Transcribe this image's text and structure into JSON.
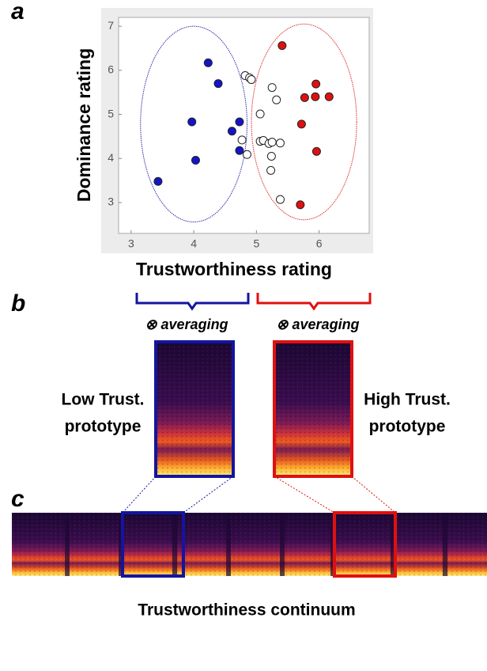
{
  "chart_data": {
    "type": "scatter",
    "panel_label": "a",
    "x_label": "Trustworthiness rating",
    "y_label": "Dominance rating",
    "xlim": [
      2.8,
      6.8
    ],
    "xticks": [
      3,
      4,
      5,
      6
    ],
    "ylim": [
      2.3,
      7.2
    ],
    "yticks": [
      3,
      4,
      5,
      6,
      7
    ],
    "series": [
      {
        "color": "#1414c8",
        "x": [
          3.43,
          4.23,
          4.39,
          3.97,
          4.03,
          4.61,
          4.73,
          4.73
        ],
        "values": [
          3.48,
          6.17,
          5.7,
          4.83,
          3.96,
          4.62,
          4.83,
          4.18
        ]
      },
      {
        "color": "#e01010",
        "x": [
          5.41,
          5.95,
          5.77,
          5.94,
          6.16,
          5.72,
          5.96,
          5.7
        ],
        "values": [
          6.56,
          5.69,
          5.38,
          5.4,
          5.4,
          4.78,
          4.16,
          2.95
        ]
      },
      {
        "color": "#ffffff",
        "x": [
          4.82,
          4.89,
          4.92,
          4.77,
          4.85,
          5.06,
          5.25,
          5.32,
          5.06,
          5.11,
          5.2,
          5.25,
          5.38,
          5.24,
          5.23,
          5.38
        ],
        "values": [
          5.88,
          5.83,
          5.79,
          4.42,
          4.09,
          5.01,
          5.61,
          5.33,
          4.39,
          4.41,
          4.34,
          4.37,
          4.35,
          4.05,
          3.73,
          3.07
        ]
      }
    ],
    "ellipses": [
      {
        "color": "#3030b0",
        "cx": 4.0,
        "cy": 4.78,
        "rx": 0.85,
        "ry": 2.22
      },
      {
        "color": "#e03030",
        "cx": 5.76,
        "cy": 4.83,
        "rx": 0.84,
        "ry": 2.22
      }
    ]
  },
  "panel_b": {
    "panel_label": "b",
    "low_operation": "⊗ averaging",
    "high_operation": "⊗ averaging",
    "low_label": [
      "Low Trust.",
      "prototype"
    ],
    "high_label": [
      "High Trust.",
      "prototype"
    ]
  },
  "panel_c": {
    "panel_label": "c",
    "caption": "Trustworthiness continuum"
  }
}
